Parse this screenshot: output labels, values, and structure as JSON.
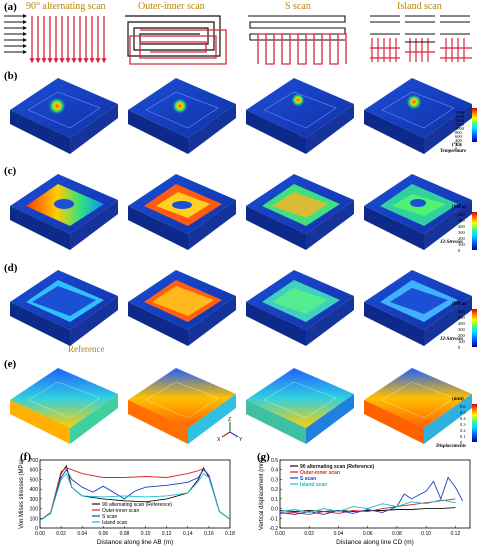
{
  "panels": {
    "a": "(a)",
    "b": "(b)",
    "c": "(c)",
    "d": "(d)",
    "e": "(e)",
    "f": "(f)",
    "g": "(g)"
  },
  "scan_titles": [
    "90° alternating scan",
    "Outer-inner scan",
    "S scan",
    "Island scan"
  ],
  "colors": {
    "scan_title": "#b8860b",
    "path_red": "#d7263d",
    "path_black": "#111111"
  },
  "colorbars": {
    "b": {
      "unit": "(°C)",
      "label": "Temperature",
      "ticks": [
        "1800",
        "1600",
        "1400",
        "1200",
        "1000",
        "800",
        "600",
        "400",
        "200",
        "0"
      ]
    },
    "c": {
      "unit": "(MPa)",
      "label": "J2-Stresses",
      "ticks": [
        "600",
        "500",
        "400",
        "300",
        "200",
        "100",
        "0"
      ]
    },
    "d": {
      "unit": "(MPa)",
      "label": "J2-Stresses",
      "ticks": [
        "600",
        "500",
        "400",
        "300",
        "200",
        "100",
        "0"
      ]
    },
    "e": {
      "unit": "(mm)",
      "label": "Displacements",
      "ticks": [
        "0.6",
        "0.5",
        "0.4",
        "0.3",
        "0.2",
        "0.1",
        "0"
      ]
    }
  },
  "reference_label": "Reference",
  "axes_triad": {
    "x": "X",
    "y": "Y",
    "z": "Z"
  },
  "chart_data": [
    {
      "type": "line",
      "panel": "(f)",
      "xlabel": "Distance along line AB (m)",
      "ylabel": "Von Mises stresses (MPa)",
      "xlim": [
        0.0,
        0.18
      ],
      "ylim": [
        0,
        700
      ],
      "xticks": [
        "0.00",
        "0.02",
        "0.04",
        "0.06",
        "0.08",
        "0.10",
        "0.12",
        "0.14",
        "0.16",
        "0.18"
      ],
      "yticks": [
        "0",
        "100",
        "200",
        "300",
        "400",
        "500",
        "600",
        "700"
      ],
      "series": [
        {
          "name": "90 alternating scan (Reference)",
          "color": "#111111",
          "x": [
            0.0,
            0.01,
            0.02,
            0.025,
            0.03,
            0.04,
            0.06,
            0.08,
            0.1,
            0.12,
            0.14,
            0.15,
            0.155,
            0.16,
            0.17,
            0.18
          ],
          "y": [
            80,
            150,
            560,
            640,
            420,
            330,
            300,
            280,
            270,
            300,
            360,
            500,
            620,
            520,
            170,
            90
          ]
        },
        {
          "name": "Outer-inner scan",
          "color": "#d62728",
          "x": [
            0.0,
            0.01,
            0.02,
            0.025,
            0.03,
            0.04,
            0.06,
            0.08,
            0.1,
            0.12,
            0.14,
            0.15,
            0.155,
            0.16,
            0.17,
            0.18
          ],
          "y": [
            80,
            160,
            580,
            620,
            600,
            560,
            520,
            520,
            530,
            520,
            560,
            590,
            610,
            540,
            170,
            90
          ]
        },
        {
          "name": "S scan",
          "color": "#1f3fbf",
          "x": [
            0.0,
            0.01,
            0.02,
            0.025,
            0.03,
            0.04,
            0.05,
            0.06,
            0.08,
            0.09,
            0.1,
            0.12,
            0.14,
            0.15,
            0.155,
            0.16,
            0.17,
            0.18
          ],
          "y": [
            80,
            150,
            520,
            600,
            500,
            420,
            370,
            430,
            300,
            380,
            420,
            440,
            470,
            520,
            600,
            540,
            170,
            90
          ]
        },
        {
          "name": "Island scan",
          "color": "#17becf",
          "x": [
            0.0,
            0.01,
            0.02,
            0.025,
            0.03,
            0.04,
            0.06,
            0.08,
            0.1,
            0.12,
            0.14,
            0.15,
            0.155,
            0.16,
            0.17,
            0.18
          ],
          "y": [
            80,
            150,
            500,
            560,
            420,
            330,
            320,
            330,
            320,
            330,
            360,
            480,
            560,
            520,
            170,
            90
          ]
        }
      ]
    },
    {
      "type": "line",
      "panel": "(g)",
      "xlabel": "Distance along line CD (m)",
      "ylabel": "Vertical displacement (mm)",
      "xlim": [
        0.0,
        0.13
      ],
      "ylim": [
        -0.2,
        0.5
      ],
      "xticks": [
        "0.00",
        "0.02",
        "0.04",
        "0.06",
        "0.08",
        "0.10",
        "0.12"
      ],
      "yticks": [
        "-0.2",
        "-0.1",
        "0.0",
        "0.1",
        "0.2",
        "0.3",
        "0.4",
        "0.5"
      ],
      "series": [
        {
          "name": "90 alternating scan (Reference)",
          "color": "#111111",
          "x": [
            0.0,
            0.01,
            0.02,
            0.03,
            0.04,
            0.05,
            0.06,
            0.07,
            0.08,
            0.09,
            0.1,
            0.11,
            0.12
          ],
          "y": [
            -0.02,
            -0.03,
            -0.02,
            -0.03,
            -0.02,
            -0.03,
            -0.02,
            -0.02,
            -0.01,
            -0.01,
            0.0,
            0.0,
            0.01
          ]
        },
        {
          "name": "Outer-inner scan",
          "color": "#d62728",
          "x": [
            0.0,
            0.01,
            0.02,
            0.03,
            0.04,
            0.05,
            0.06,
            0.07,
            0.08,
            0.09,
            0.1,
            0.11,
            0.12
          ],
          "y": [
            -0.05,
            -0.04,
            -0.06,
            -0.03,
            -0.05,
            -0.02,
            -0.03,
            0.0,
            0.02,
            0.04,
            0.06,
            0.08,
            0.1
          ]
        },
        {
          "name": "S scan",
          "color": "#1f3fbf",
          "x": [
            0.0,
            0.01,
            0.02,
            0.03,
            0.04,
            0.05,
            0.06,
            0.07,
            0.08,
            0.085,
            0.09,
            0.1,
            0.105,
            0.11,
            0.115,
            0.12,
            0.125
          ],
          "y": [
            -0.04,
            -0.06,
            -0.03,
            -0.06,
            -0.02,
            -0.05,
            -0.01,
            -0.04,
            0.02,
            0.15,
            0.1,
            0.18,
            0.28,
            0.1,
            0.32,
            0.22,
            0.08
          ]
        },
        {
          "name": "Island scan",
          "color": "#17becf",
          "x": [
            0.0,
            0.01,
            0.02,
            0.03,
            0.04,
            0.05,
            0.06,
            0.07,
            0.08,
            0.09,
            0.1,
            0.11,
            0.12
          ],
          "y": [
            -0.03,
            -0.01,
            -0.04,
            0.0,
            -0.03,
            0.02,
            0.0,
            0.05,
            0.02,
            0.07,
            0.05,
            0.09,
            0.06
          ]
        }
      ]
    }
  ]
}
